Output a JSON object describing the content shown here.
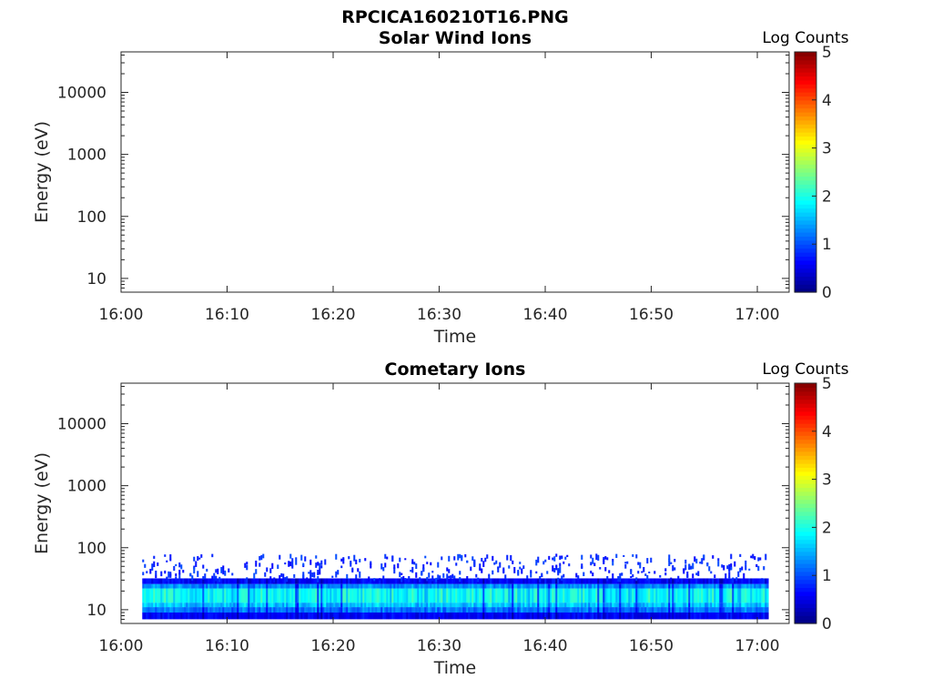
{
  "figure": {
    "main_title": "RPCICA160210T16.PNG"
  },
  "chart_data": [
    {
      "type": "heatmap",
      "title": "Solar Wind Ions",
      "xlabel": "Time",
      "ylabel": "Energy (eV)",
      "x_ticks": [
        "16:00",
        "16:10",
        "16:20",
        "16:30",
        "16:40",
        "16:50",
        "17:00"
      ],
      "x_range": [
        "16:00",
        "17:03"
      ],
      "y_scale": "log",
      "y_ticks": [
        10,
        100,
        1000,
        10000
      ],
      "y_tick_labels": [
        "10",
        "100",
        "1000",
        "10000"
      ],
      "y_range": [
        6,
        45000
      ],
      "colorbar": {
        "label": "Log Counts",
        "ticks": [
          0,
          1,
          2,
          3,
          4,
          5
        ],
        "range": [
          0,
          5
        ],
        "colormap": "jet"
      },
      "data": {
        "time_range": [],
        "energy_range_eV": [],
        "log_counts": []
      }
    },
    {
      "type": "heatmap",
      "title": "Cometary Ions",
      "xlabel": "Time",
      "ylabel": "Energy (eV)",
      "x_ticks": [
        "16:00",
        "16:10",
        "16:20",
        "16:30",
        "16:40",
        "16:50",
        "17:00"
      ],
      "x_range": [
        "16:00",
        "17:03"
      ],
      "y_scale": "log",
      "y_ticks": [
        10,
        100,
        1000,
        10000
      ],
      "y_tick_labels": [
        "10",
        "100",
        "1000",
        "10000"
      ],
      "y_range": [
        6,
        45000
      ],
      "colorbar": {
        "label": "Log Counts",
        "ticks": [
          0,
          1,
          2,
          3,
          4,
          5
        ],
        "range": [
          0,
          5
        ],
        "colormap": "jet"
      },
      "data": {
        "time_range": [
          "16:02",
          "17:01"
        ],
        "bands": [
          {
            "energy_eV": [
              7,
              9
            ],
            "log_counts": 0.6
          },
          {
            "energy_eV": [
              9,
              11
            ],
            "log_counts": 1.2
          },
          {
            "energy_eV": [
              11,
              13
            ],
            "log_counts": 1.6
          },
          {
            "energy_eV": [
              13,
              22
            ],
            "log_counts": 1.9
          },
          {
            "energy_eV": [
              22,
              26
            ],
            "log_counts": 1.3
          },
          {
            "energy_eV": [
              26,
              32
            ],
            "log_counts": 0.6
          },
          {
            "energy_eV": [
              32,
              80
            ],
            "log_counts": 0.2,
            "sparse": true
          }
        ]
      }
    }
  ]
}
